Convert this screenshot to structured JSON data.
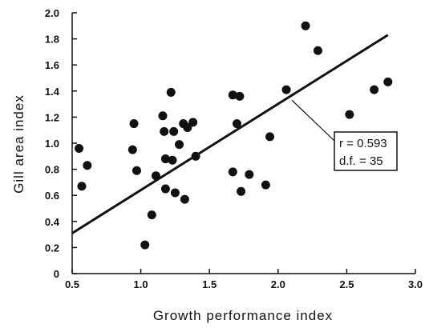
{
  "chart_data": {
    "type": "scatter",
    "xlabel": "Growth performance index",
    "ylabel": "Gill area index",
    "xlim": [
      0.5,
      3.0
    ],
    "ylim": [
      0,
      2.0
    ],
    "x_ticks": [
      "0.5",
      "1.0",
      "1.5",
      "2.0",
      "2.5",
      "3.0"
    ],
    "y_ticks": [
      "0",
      "0.2",
      "0.4",
      "0.6",
      "0.8",
      "1.0",
      "1.2",
      "1.4",
      "1.6",
      "1.8",
      "2.0"
    ],
    "grid": false,
    "points": [
      {
        "x": 0.55,
        "y": 0.96
      },
      {
        "x": 0.57,
        "y": 0.67
      },
      {
        "x": 0.61,
        "y": 0.83
      },
      {
        "x": 0.94,
        "y": 0.95
      },
      {
        "x": 0.95,
        "y": 1.15
      },
      {
        "x": 0.97,
        "y": 0.79
      },
      {
        "x": 1.03,
        "y": 0.22
      },
      {
        "x": 1.08,
        "y": 0.45
      },
      {
        "x": 1.11,
        "y": 0.75
      },
      {
        "x": 1.16,
        "y": 1.21
      },
      {
        "x": 1.17,
        "y": 1.09
      },
      {
        "x": 1.18,
        "y": 0.88
      },
      {
        "x": 1.18,
        "y": 0.65
      },
      {
        "x": 1.22,
        "y": 1.39
      },
      {
        "x": 1.23,
        "y": 0.87
      },
      {
        "x": 1.24,
        "y": 1.09
      },
      {
        "x": 1.25,
        "y": 0.62
      },
      {
        "x": 1.28,
        "y": 0.99
      },
      {
        "x": 1.31,
        "y": 1.15
      },
      {
        "x": 1.32,
        "y": 0.57
      },
      {
        "x": 1.34,
        "y": 1.12
      },
      {
        "x": 1.38,
        "y": 1.16
      },
      {
        "x": 1.4,
        "y": 0.9
      },
      {
        "x": 1.67,
        "y": 1.37
      },
      {
        "x": 1.67,
        "y": 0.78
      },
      {
        "x": 1.7,
        "y": 1.15
      },
      {
        "x": 1.72,
        "y": 1.36
      },
      {
        "x": 1.73,
        "y": 0.63
      },
      {
        "x": 1.79,
        "y": 0.76
      },
      {
        "x": 1.91,
        "y": 0.68
      },
      {
        "x": 1.94,
        "y": 1.05
      },
      {
        "x": 2.06,
        "y": 1.41
      },
      {
        "x": 2.2,
        "y": 1.9
      },
      {
        "x": 2.29,
        "y": 1.71
      },
      {
        "x": 2.52,
        "y": 1.22
      },
      {
        "x": 2.7,
        "y": 1.41
      },
      {
        "x": 2.8,
        "y": 1.47
      }
    ],
    "regression_line": {
      "x": [
        0.5,
        2.8
      ],
      "y": [
        0.31,
        1.83
      ]
    },
    "annotation": {
      "lines": [
        "r = 0.593",
        "d.f. = 35"
      ],
      "points_to": {
        "x": 2.1,
        "y": 1.33
      }
    }
  }
}
